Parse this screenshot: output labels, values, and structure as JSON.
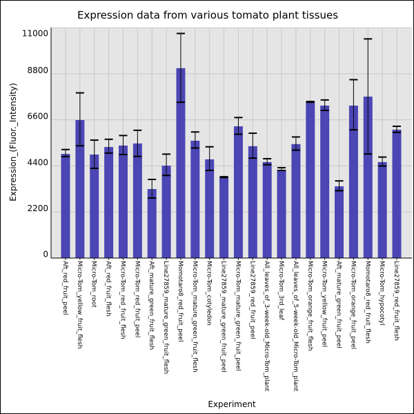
{
  "chart_data": {
    "type": "bar",
    "title": "Expression data from various tomato plant tissues",
    "xlabel": "Experiment",
    "ylabel": "Expression_(Fluor._Intensity)",
    "ylim": [
      0,
      11000
    ],
    "yticks": [
      0,
      2200,
      4400,
      6600,
      8800,
      11000
    ],
    "grid": true,
    "bar_color": "#4b46b4",
    "categories": [
      "Aft_red_fruit_peel",
      "Micro-Tom_yellow_fruit_flesh",
      "Micro-Tom_root",
      "Aft_red_fruit_flesh",
      "Micro-Tom_red_fruit_flesh",
      "Micro-Tom_red_fruit_peel",
      "Aft_mature_green_fruit_flesh",
      "Line27859_mature_green_fruit_flesh",
      "Momotaro8_red_fruit_peel",
      "Micro-Tom_mature_green_fruit_flesh",
      "Micro-Tom_cotyledon",
      "Line27859_mature_green_fruit_peel",
      "Micro-Tom_mature_green_fruit_peel",
      "Line27859_red_fruit_peel",
      "All_leaves_of_3-week-old_Micro-Tom_plant",
      "Micro-Tom_3rd_leaf",
      "All_leaves_of_5-week-old_Micro-Tom_plant",
      "Micro-Tom_orange_fruit_flesh",
      "Micro-Tom_yellow_fruit_peel",
      "Aft_mature_green_fruit_peel",
      "Micro-Tom_orange_fruit_peel",
      "Momotaro8_red_fruit_flesh",
      "Micro-Tom_hypocotyl",
      "Line27859_red_fruit_flesh"
    ],
    "values": [
      4970,
      6590,
      4940,
      5300,
      5370,
      5470,
      3290,
      4410,
      9070,
      5600,
      4710,
      3860,
      6290,
      5340,
      4580,
      4210,
      5440,
      7460,
      7280,
      3420,
      7280,
      7710,
      4580,
      6130
    ],
    "error_high": [
      5180,
      7890,
      5630,
      5670,
      5850,
      6100,
      3750,
      4960,
      10730,
      6020,
      5310,
      3880,
      6710,
      5960,
      4740,
      4310,
      5780,
      7480,
      7550,
      3680,
      8520,
      10470,
      4820,
      6290
    ],
    "error_low": [
      4840,
      5360,
      4280,
      5010,
      4940,
      4850,
      2860,
      3940,
      7440,
      5250,
      4180,
      3840,
      5910,
      4770,
      4450,
      4180,
      5150,
      7440,
      7050,
      3210,
      6120,
      4970,
      4390,
      6000
    ]
  }
}
